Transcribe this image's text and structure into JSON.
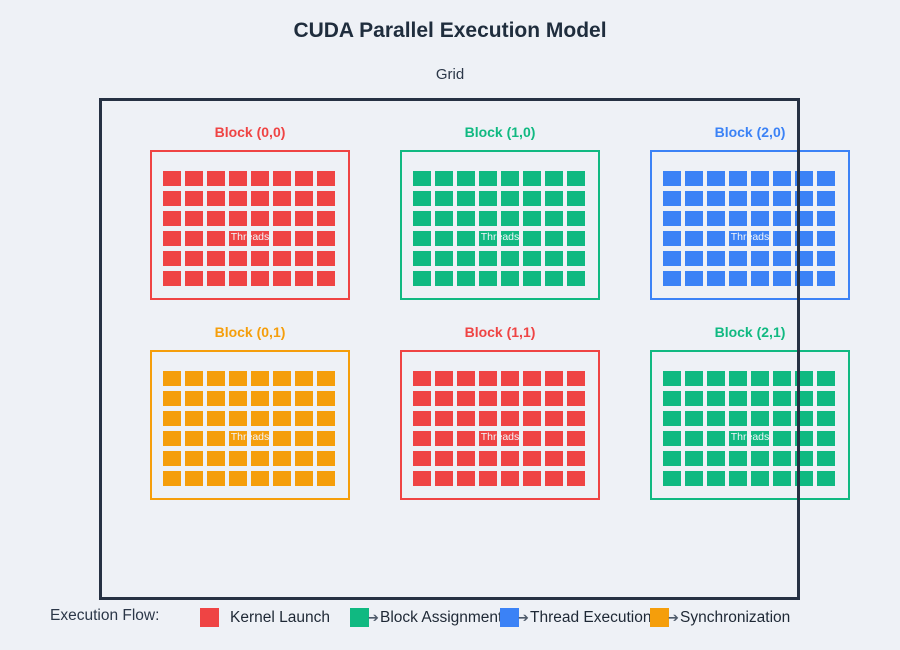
{
  "page": {
    "title": "CUDA Parallel Execution Model",
    "subtitle": "Grid"
  },
  "thread_label": "Threads",
  "blocks": [
    {
      "label": "Block (0,0)",
      "color": "#ef4444",
      "col": 0,
      "row": 0,
      "cols": 8,
      "rows": 6
    },
    {
      "label": "Block (1,0)",
      "color": "#10b981",
      "col": 1,
      "row": 0,
      "cols": 8,
      "rows": 6
    },
    {
      "label": "Block (2,0)",
      "color": "#3b82f6",
      "col": 2,
      "row": 0,
      "cols": 8,
      "rows": 6
    },
    {
      "label": "Block (0,1)",
      "color": "#f59e0b",
      "col": 0,
      "row": 1,
      "cols": 8,
      "rows": 6
    },
    {
      "label": "Block (1,1)",
      "color": "#ef4444",
      "col": 1,
      "row": 1,
      "cols": 8,
      "rows": 6
    },
    {
      "label": "Block (2,1)",
      "color": "#10b981",
      "col": 2,
      "row": 1,
      "cols": 8,
      "rows": 6
    }
  ],
  "legend": {
    "title": "Execution Flow:",
    "arrow_glyph": "➔",
    "items": [
      {
        "label": "Kernel Launch",
        "color": "#ef4444",
        "arrow": false
      },
      {
        "label": "Block Assignment",
        "color": "#10b981",
        "arrow": true
      },
      {
        "label": "Thread Execution",
        "color": "#3b82f6",
        "arrow": true
      },
      {
        "label": "Synchronization",
        "color": "#f59e0b",
        "arrow": true
      }
    ]
  },
  "colors": {
    "background": "#eef1f6",
    "frame": "#263143",
    "title_text": "#1f2d3d"
  }
}
